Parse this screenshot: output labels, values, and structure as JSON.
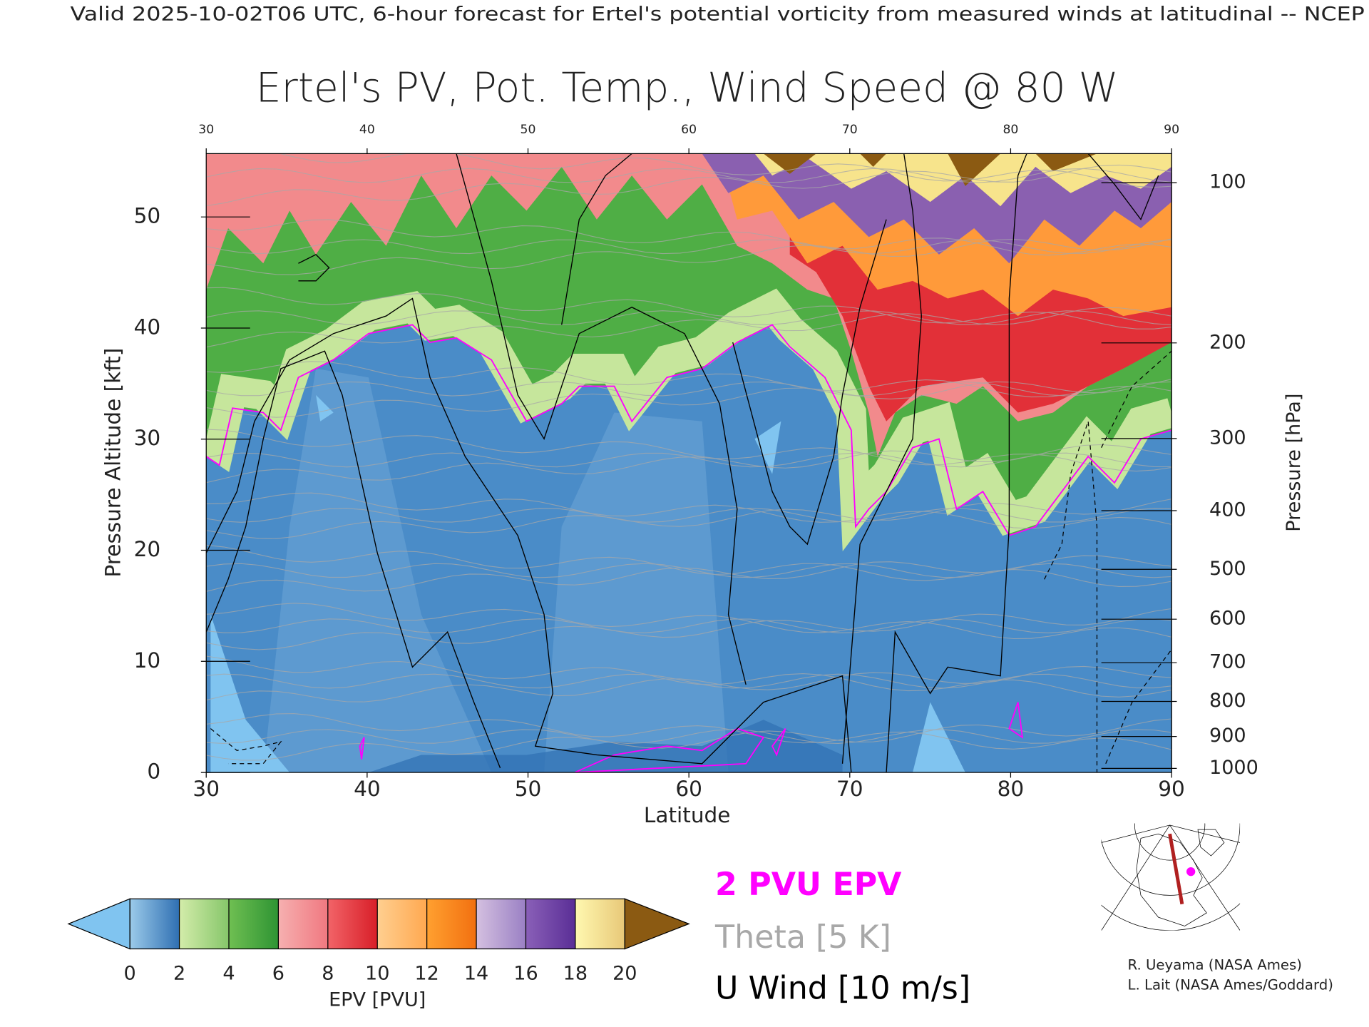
{
  "header": "Valid 2025-10-02T06 UTC, 6-hour forecast for Ertel's potential vorticity from measured winds at latitudinal -- NCEP",
  "chart_data": {
    "type": "contour_section",
    "title": "Ertel's PV, Pot. Temp., Wind Speed @ 80 W",
    "x_label": "Latitude",
    "y_label": "Pressure Altitude [kft]",
    "y2_label": "Pressure [hPa]",
    "xlim": [
      30,
      90
    ],
    "xticks": [
      30,
      40,
      50,
      60,
      70,
      80,
      90
    ],
    "ylim": [
      0,
      55.7
    ],
    "yticks": [
      0,
      10,
      20,
      30,
      40,
      50
    ],
    "y2lim": [
      1013.25,
      88
    ],
    "y2ticks": [
      100,
      200,
      300,
      400,
      500,
      600,
      700,
      800,
      900,
      1000
    ],
    "colorbar": {
      "label": "EPV [PVU]",
      "ticks": [
        0,
        2,
        4,
        6,
        8,
        10,
        12,
        14,
        16,
        18,
        20
      ],
      "colors": [
        [
          "#9ccbea",
          "#2f6fb2"
        ],
        [
          "#d3ecaa",
          "#86c66a"
        ],
        [
          "#6fbf52",
          "#2e9433"
        ],
        [
          "#f6b0b0",
          "#f07880"
        ],
        [
          "#f26468",
          "#d81e28"
        ],
        [
          "#ffcf90",
          "#ffa850"
        ],
        [
          "#ffa030",
          "#f27010"
        ],
        [
          "#d4c0e0",
          "#9a80c4"
        ],
        [
          "#8a60b8",
          "#5a2e96"
        ],
        [
          "#fff8b0",
          "#e8c878"
        ]
      ],
      "under_color": "#80c4f0",
      "over_color": "#8b5a12"
    },
    "legend": [
      {
        "name": "2 PVU EPV",
        "color": "#ff00ff"
      },
      {
        "name": "Theta [5 K]",
        "color": "#a8a8a8"
      },
      {
        "name": "U Wind [10 m/s]",
        "color": "#000000"
      }
    ]
  },
  "credits": [
    "R. Ueyama (NASA Ames)",
    "L. Lait (NASA Ames/Goddard)"
  ]
}
